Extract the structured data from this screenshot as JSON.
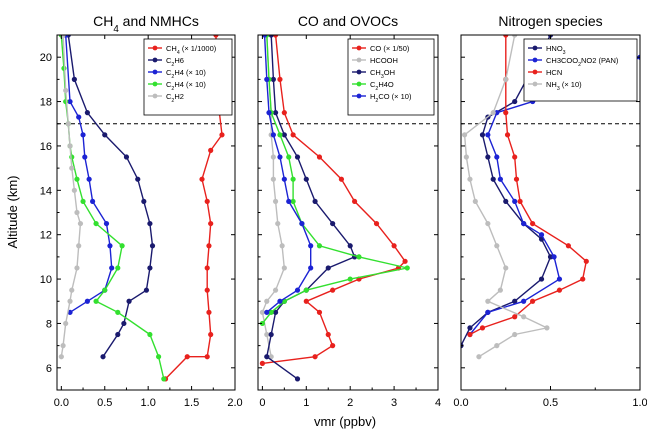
{
  "ylabel": "Altitude (km)",
  "xlabel": "vmr (ppbv)",
  "chart_data": [
    {
      "type": "line",
      "title": "CH4 and NMHCs",
      "title_main": "CH",
      "title_sub": "4",
      "title_rest": " and NMHCs",
      "xlim": [
        -0.05,
        2.0
      ],
      "ylim": [
        5,
        21
      ],
      "xticks": [
        "0.0",
        "0.5",
        "1.0",
        "1.5",
        "2.0"
      ],
      "xtick_values": [
        0,
        0.5,
        1.0,
        1.5,
        2.0
      ],
      "yticks": [
        "6",
        "8",
        "10",
        "12",
        "14",
        "16",
        "18",
        "20"
      ],
      "ytick_values": [
        6,
        8,
        10,
        12,
        14,
        16,
        18,
        20
      ],
      "tropopause_km": 17,
      "legend_position": "top-right",
      "series": [
        {
          "name": "CH4 (× 1/1000)",
          "legend_main": "CH",
          "legend_sub": "4",
          "legend_rest": " (× 1/1000)",
          "color": "#e8211d",
          "points": [
            [
              1.78,
              21
            ],
            [
              1.8,
              18.5
            ],
            [
              1.82,
              17.5
            ],
            [
              1.85,
              16.5
            ],
            [
              1.72,
              15.8
            ],
            [
              1.62,
              14.5
            ],
            [
              1.68,
              13.5
            ],
            [
              1.72,
              12.5
            ],
            [
              1.7,
              11.5
            ],
            [
              1.68,
              10.5
            ],
            [
              1.68,
              9.5
            ],
            [
              1.7,
              8.5
            ],
            [
              1.72,
              7.5
            ],
            [
              1.68,
              6.5
            ],
            [
              1.45,
              6.5
            ],
            [
              1.2,
              5.5
            ]
          ]
        },
        {
          "name": "C2H6",
          "legend_main": "C",
          "legend_sub": "2",
          "legend_rest": "H6",
          "color": "#1a1a6e",
          "points": [
            [
              0.08,
              21
            ],
            [
              0.15,
              19
            ],
            [
              0.3,
              17.5
            ],
            [
              0.5,
              16.5
            ],
            [
              0.75,
              15.5
            ],
            [
              0.88,
              14.5
            ],
            [
              0.95,
              13.5
            ],
            [
              1.02,
              12.5
            ],
            [
              1.05,
              11.5
            ],
            [
              1.02,
              10.5
            ],
            [
              0.98,
              9.5
            ],
            [
              0.78,
              9
            ],
            [
              0.72,
              8
            ],
            [
              0.65,
              7.5
            ],
            [
              0.48,
              6.5
            ]
          ]
        },
        {
          "name": "C2H4 (× 10)",
          "legend_main": "C",
          "legend_sub": "2",
          "legend_rest": "H4 (× 10)",
          "color": "#1c23d4",
          "points": [
            [
              0.05,
              21
            ],
            [
              0.1,
              18
            ],
            [
              0.2,
              17.3
            ],
            [
              0.25,
              16.5
            ],
            [
              0.27,
              15.5
            ],
            [
              0.32,
              14.5
            ],
            [
              0.36,
              13.5
            ],
            [
              0.52,
              12.5
            ],
            [
              0.56,
              11.5
            ],
            [
              0.58,
              10.5
            ],
            [
              0.5,
              9.5
            ],
            [
              0.3,
              9
            ],
            [
              0.1,
              8.5
            ]
          ]
        },
        {
          "name": "C2H4 (× 10)",
          "legend_main": "C",
          "legend_sub": "2",
          "legend_rest": "H4 (× 10)",
          "color": "#33e02f",
          "points": [
            [
              0.0,
              21
            ],
            [
              0.03,
              19.5
            ],
            [
              0.05,
              18
            ],
            [
              0.08,
              17
            ],
            [
              0.1,
              16
            ],
            [
              0.12,
              15.5
            ],
            [
              0.18,
              14.5
            ],
            [
              0.25,
              13.5
            ],
            [
              0.4,
              12.5
            ],
            [
              0.7,
              11.5
            ],
            [
              0.65,
              10.5
            ],
            [
              0.5,
              9.5
            ],
            [
              0.4,
              9
            ],
            [
              0.65,
              8.5
            ],
            [
              1.02,
              7.5
            ],
            [
              1.12,
              6.5
            ],
            [
              1.18,
              5.5
            ]
          ]
        },
        {
          "name": "C2H2",
          "legend_main": "C",
          "legend_sub": "2",
          "legend_rest": "H2",
          "color": "#bdbdbd",
          "points": [
            [
              0.02,
              21
            ],
            [
              0.05,
              18.5
            ],
            [
              0.08,
              17
            ],
            [
              0.1,
              16
            ],
            [
              0.12,
              15
            ],
            [
              0.15,
              14
            ],
            [
              0.18,
              13
            ],
            [
              0.22,
              12.5
            ],
            [
              0.2,
              11.5
            ],
            [
              0.18,
              10.5
            ],
            [
              0.12,
              9.5
            ],
            [
              0.1,
              9
            ],
            [
              0.05,
              8
            ],
            [
              0.02,
              7
            ],
            [
              0.0,
              6.5
            ]
          ]
        }
      ]
    },
    {
      "type": "line",
      "title": "CO and OVOCs",
      "xlim": [
        -0.1,
        4.0
      ],
      "ylim": [
        5,
        21
      ],
      "xticks": [
        "0",
        "1",
        "2",
        "3",
        "4"
      ],
      "xtick_values": [
        0,
        1,
        2,
        3,
        4
      ],
      "tropopause_km": 17,
      "legend_position": "top-right",
      "series": [
        {
          "name": "CO (× 1/50)",
          "legend_main": "CO (× 1/50)",
          "legend_sub": "",
          "legend_rest": "",
          "color": "#e8211d",
          "points": [
            [
              0.3,
              21
            ],
            [
              0.4,
              19
            ],
            [
              0.5,
              17.5
            ],
            [
              0.7,
              16.5
            ],
            [
              1.3,
              15.5
            ],
            [
              1.8,
              14.5
            ],
            [
              2.1,
              13.5
            ],
            [
              2.6,
              12.5
            ],
            [
              3.0,
              11.5
            ],
            [
              3.25,
              10.8
            ],
            [
              3.1,
              10.5
            ],
            [
              2.2,
              10
            ],
            [
              1.6,
              9.5
            ],
            [
              1.0,
              9
            ],
            [
              1.3,
              8.5
            ],
            [
              1.5,
              7.5
            ],
            [
              1.6,
              7
            ],
            [
              1.2,
              6.5
            ],
            [
              0.0,
              6.2
            ]
          ]
        },
        {
          "name": "HCOOH",
          "legend_main": "HCOOH",
          "legend_sub": "",
          "legend_rest": "",
          "color": "#bdbdbd",
          "points": [
            [
              0.1,
              21
            ],
            [
              0.15,
              19
            ],
            [
              0.2,
              17.5
            ],
            [
              0.2,
              16.5
            ],
            [
              0.25,
              15.5
            ],
            [
              0.25,
              14.5
            ],
            [
              0.3,
              13.5
            ],
            [
              0.35,
              12.5
            ],
            [
              0.45,
              11.5
            ],
            [
              0.5,
              10.5
            ],
            [
              0.3,
              9.5
            ],
            [
              0.1,
              9
            ],
            [
              0.0,
              8.5
            ],
            [
              0.1,
              7.5
            ],
            [
              0.2,
              6.5
            ]
          ]
        },
        {
          "name": "CH3OH",
          "legend_main": "CH",
          "legend_sub": "3",
          "legend_rest": "OH",
          "color": "#1a1a6e",
          "points": [
            [
              0.2,
              21
            ],
            [
              0.25,
              19
            ],
            [
              0.3,
              17.5
            ],
            [
              0.5,
              16.5
            ],
            [
              0.8,
              15.5
            ],
            [
              1.0,
              14.5
            ],
            [
              1.2,
              13.5
            ],
            [
              1.6,
              12.5
            ],
            [
              2.0,
              11.5
            ],
            [
              2.1,
              11
            ],
            [
              1.5,
              10.5
            ],
            [
              1.0,
              9.5
            ],
            [
              0.5,
              9
            ],
            [
              0.3,
              8.5
            ],
            [
              0.2,
              7.5
            ],
            [
              0.1,
              6.5
            ],
            [
              0.8,
              5.5
            ]
          ]
        },
        {
          "name": "C2H4O",
          "legend_main": "C",
          "legend_sub": "2",
          "legend_rest": "H4O",
          "color": "#33e02f",
          "points": [
            [
              0.1,
              21
            ],
            [
              0.15,
              19
            ],
            [
              0.2,
              17.5
            ],
            [
              0.4,
              16.5
            ],
            [
              0.6,
              15.5
            ],
            [
              0.7,
              14.5
            ],
            [
              0.7,
              13.5
            ],
            [
              0.9,
              12.5
            ],
            [
              1.3,
              11.5
            ],
            [
              2.2,
              11
            ],
            [
              3.3,
              10.5
            ],
            [
              2.0,
              10
            ],
            [
              1.0,
              9.5
            ],
            [
              0.5,
              9
            ],
            [
              0.2,
              8.5
            ],
            [
              0.0,
              8
            ]
          ]
        },
        {
          "name": "H2CO (× 10)",
          "legend_main": "H",
          "legend_sub": "2",
          "legend_rest": "CO (× 10)",
          "color": "#1c23d4",
          "points": [
            [
              0.05,
              21
            ],
            [
              0.1,
              19
            ],
            [
              0.15,
              17.5
            ],
            [
              0.25,
              16.5
            ],
            [
              0.4,
              15.5
            ],
            [
              0.5,
              14.5
            ],
            [
              0.6,
              13.5
            ],
            [
              0.9,
              12.5
            ],
            [
              1.1,
              11.5
            ],
            [
              1.1,
              10.5
            ],
            [
              0.8,
              9.5
            ],
            [
              0.4,
              9
            ],
            [
              0.1,
              8.5
            ]
          ]
        }
      ]
    },
    {
      "type": "line",
      "title": "Nitrogen species",
      "xlim": [
        -0.0,
        1.0
      ],
      "ylim": [
        5,
        21
      ],
      "xticks": [
        "0.0",
        "0.5",
        "1.0"
      ],
      "xtick_values": [
        0,
        0.5,
        1.0
      ],
      "tropopause_km": 17,
      "legend_position": "top-right",
      "series": [
        {
          "name": "HNO3",
          "legend_main": "HNO",
          "legend_sub": "3",
          "legend_rest": "",
          "color": "#1a1a6e",
          "points": [
            [
              0.5,
              21
            ],
            [
              0.4,
              19.5
            ],
            [
              0.3,
              18
            ],
            [
              0.15,
              17.3
            ],
            [
              0.12,
              16.5
            ],
            [
              0.15,
              15.5
            ],
            [
              0.18,
              14.5
            ],
            [
              0.25,
              13.5
            ],
            [
              0.35,
              12.5
            ],
            [
              0.45,
              11.8
            ],
            [
              0.5,
              11
            ],
            [
              0.45,
              10
            ],
            [
              0.3,
              9
            ],
            [
              0.15,
              8.5
            ],
            [
              0.05,
              7.8
            ],
            [
              0.0,
              7
            ]
          ]
        },
        {
          "name": "CH3COO2NO2 (PAN)",
          "legend_main": "CH3COO",
          "legend_sub": "2",
          "legend_rest": "NO2 (PAN)",
          "color": "#1c23d4",
          "points": [
            [
              1.0,
              20
            ],
            [
              0.7,
              18.8
            ],
            [
              0.4,
              18
            ],
            [
              0.2,
              17.5
            ],
            [
              0.15,
              16.5
            ],
            [
              0.2,
              15.5
            ],
            [
              0.22,
              14.5
            ],
            [
              0.3,
              13.5
            ],
            [
              0.35,
              12.5
            ],
            [
              0.45,
              12
            ],
            [
              0.52,
              11
            ],
            [
              0.55,
              10
            ],
            [
              0.35,
              9
            ],
            [
              0.15,
              8.5
            ],
            [
              0.05,
              7.5
            ]
          ]
        },
        {
          "name": "HCN",
          "legend_main": "HCN",
          "legend_sub": "",
          "legend_rest": "",
          "color": "#e8211d",
          "points": [
            [
              0.25,
              21
            ],
            [
              0.25,
              19
            ],
            [
              0.25,
              17.5
            ],
            [
              0.26,
              16.5
            ],
            [
              0.3,
              15.5
            ],
            [
              0.31,
              14.5
            ],
            [
              0.33,
              13.5
            ],
            [
              0.4,
              12.5
            ],
            [
              0.6,
              11.5
            ],
            [
              0.7,
              10.8
            ],
            [
              0.68,
              10
            ],
            [
              0.55,
              9.5
            ],
            [
              0.4,
              9
            ],
            [
              0.3,
              8.3
            ],
            [
              0.12,
              7.8
            ],
            [
              0.05,
              7.5
            ]
          ]
        },
        {
          "name": "NH3 (× 10)",
          "legend_main": "NH",
          "legend_sub": "3",
          "legend_rest": " (× 10)",
          "color": "#bdbdbd",
          "points": [
            [
              0.3,
              21
            ],
            [
              0.25,
              19
            ],
            [
              0.18,
              17.5
            ],
            [
              0.02,
              16.5
            ],
            [
              0.03,
              15.5
            ],
            [
              0.05,
              14.5
            ],
            [
              0.08,
              13.5
            ],
            [
              0.15,
              12.5
            ],
            [
              0.2,
              11.5
            ],
            [
              0.25,
              10.5
            ],
            [
              0.22,
              9.5
            ],
            [
              0.15,
              9
            ],
            [
              0.35,
              8.3
            ],
            [
              0.48,
              7.8
            ],
            [
              0.3,
              7.5
            ],
            [
              0.2,
              7
            ],
            [
              0.1,
              6.5
            ]
          ]
        }
      ]
    }
  ]
}
